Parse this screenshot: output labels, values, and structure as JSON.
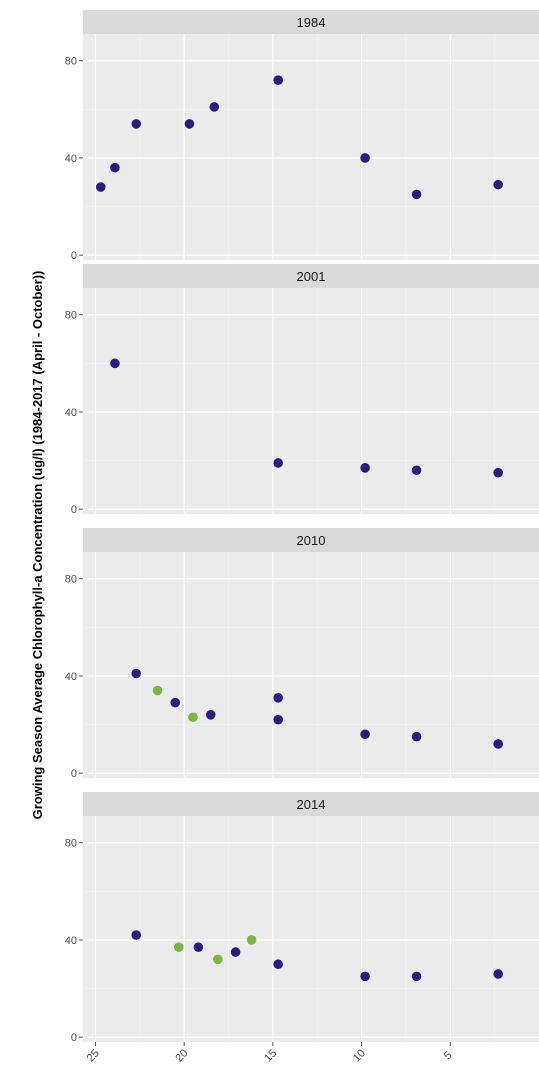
{
  "chart_data": {
    "type": "scatter",
    "ylabel": "Growing Season Average Chlorophyll-a Concentration (ug/l) (1984-2017 (April - October))",
    "xlabel": "",
    "x_reversed": true,
    "xlim": [
      25.7,
      0
    ],
    "ylim": [
      -2,
      91
    ],
    "x_ticks": [
      "25",
      "20",
      "15",
      "10",
      "5"
    ],
    "y_ticks": [
      "0",
      "40",
      "80"
    ],
    "grid": true,
    "colors": {
      "navy": "#2b1e7a",
      "green": "#7ab648"
    },
    "panels": [
      {
        "strip": "1984",
        "points": [
          {
            "x": 24.7,
            "y": 28,
            "color": "navy"
          },
          {
            "x": 23.9,
            "y": 36,
            "color": "navy"
          },
          {
            "x": 22.7,
            "y": 54,
            "color": "navy"
          },
          {
            "x": 19.7,
            "y": 54,
            "color": "navy"
          },
          {
            "x": 18.3,
            "y": 61,
            "color": "navy"
          },
          {
            "x": 14.7,
            "y": 72,
            "color": "navy"
          },
          {
            "x": 9.8,
            "y": 40,
            "color": "navy"
          },
          {
            "x": 6.9,
            "y": 25,
            "color": "navy"
          },
          {
            "x": 2.3,
            "y": 29,
            "color": "navy"
          }
        ]
      },
      {
        "strip": "2001",
        "points": [
          {
            "x": 23.9,
            "y": 60,
            "color": "navy"
          },
          {
            "x": 14.7,
            "y": 19,
            "color": "navy"
          },
          {
            "x": 9.8,
            "y": 17,
            "color": "navy"
          },
          {
            "x": 6.9,
            "y": 16,
            "color": "navy"
          },
          {
            "x": 2.3,
            "y": 15,
            "color": "navy"
          }
        ]
      },
      {
        "strip": "2010",
        "points": [
          {
            "x": 22.7,
            "y": 41,
            "color": "navy"
          },
          {
            "x": 21.5,
            "y": 34,
            "color": "green"
          },
          {
            "x": 20.5,
            "y": 29,
            "color": "navy"
          },
          {
            "x": 19.5,
            "y": 23,
            "color": "green"
          },
          {
            "x": 18.5,
            "y": 24,
            "color": "navy"
          },
          {
            "x": 14.7,
            "y": 31,
            "color": "navy"
          },
          {
            "x": 14.7,
            "y": 22,
            "color": "navy"
          },
          {
            "x": 9.8,
            "y": 16,
            "color": "navy"
          },
          {
            "x": 6.9,
            "y": 15,
            "color": "navy"
          },
          {
            "x": 2.3,
            "y": 12,
            "color": "navy"
          }
        ]
      },
      {
        "strip": "2014",
        "points": [
          {
            "x": 22.7,
            "y": 42,
            "color": "navy"
          },
          {
            "x": 20.3,
            "y": 37,
            "color": "green"
          },
          {
            "x": 19.2,
            "y": 37,
            "color": "navy"
          },
          {
            "x": 18.1,
            "y": 32,
            "color": "green"
          },
          {
            "x": 17.1,
            "y": 35,
            "color": "navy"
          },
          {
            "x": 16.2,
            "y": 40,
            "color": "green"
          },
          {
            "x": 14.7,
            "y": 30,
            "color": "navy"
          },
          {
            "x": 9.8,
            "y": 25,
            "color": "navy"
          },
          {
            "x": 6.9,
            "y": 25,
            "color": "navy"
          },
          {
            "x": 2.3,
            "y": 26,
            "color": "navy"
          }
        ]
      }
    ]
  }
}
